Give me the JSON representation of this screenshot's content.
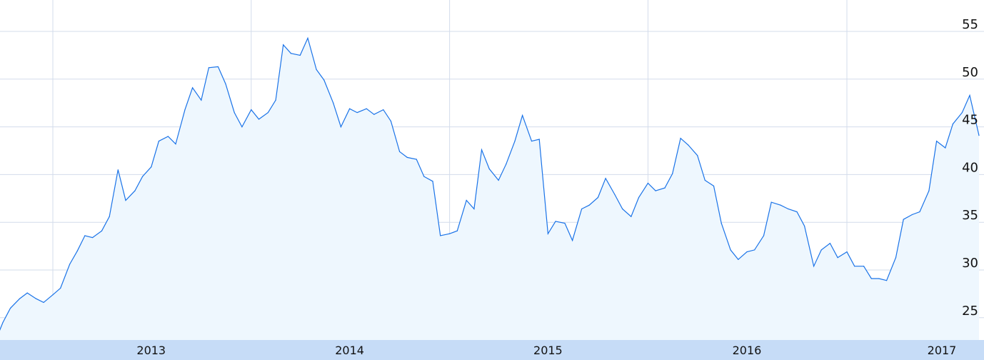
{
  "chart_data": {
    "type": "area",
    "title": "",
    "xlabel": "",
    "ylabel": "",
    "ylim": [
      22.7,
      58.3
    ],
    "y_ticks": [
      25,
      30,
      35,
      40,
      45,
      50,
      55
    ],
    "x_ticks": [
      "2013",
      "2014",
      "2015",
      "2016",
      "2017"
    ],
    "grid": true,
    "colors": {
      "line": "#1a73e8",
      "fill": "#eef7fe",
      "grid": "#d3dceb",
      "axis_band": "#c6dcf7"
    },
    "start": [
      "2012-09-24",
      23.5
    ],
    "semi_monthly_from": "2012-10-01",
    "values": [
      24.5,
      26.0,
      27.0,
      27.6,
      27.0,
      26.6,
      27.4,
      28.1,
      30.6,
      32.0,
      33.6,
      33.4,
      34.1,
      35.6,
      40.5,
      37.3,
      38.3,
      39.8,
      40.8,
      43.5,
      44.0,
      43.2,
      46.8,
      49.1,
      47.8,
      51.2,
      51.3,
      49.5,
      46.5,
      45.0,
      46.8,
      45.8,
      46.5,
      47.8,
      53.6,
      52.7,
      52.5,
      54.3,
      51.0,
      49.9,
      47.5,
      45.0,
      46.9,
      46.5,
      46.9,
      46.3,
      46.8,
      45.6,
      42.4,
      41.8,
      41.6,
      39.8,
      39.3,
      33.6,
      33.8,
      34.1,
      37.3,
      36.4,
      42.6,
      40.6,
      39.4,
      41.1,
      43.5,
      46.2,
      43.5,
      43.7,
      33.8,
      35.1,
      34.9,
      33.1,
      36.4,
      36.8,
      37.6,
      39.6,
      37.9,
      36.4,
      35.6,
      37.6,
      39.1,
      38.3,
      38.6,
      40.1,
      43.8,
      43.1,
      42.0,
      39.4,
      38.8,
      34.9,
      32.1,
      31.1,
      31.9,
      32.1,
      33.6,
      37.1,
      36.8,
      36.4,
      36.1,
      34.6,
      30.4,
      32.1,
      32.8,
      31.3,
      31.9,
      30.4,
      30.4,
      29.1,
      29.1,
      28.9,
      31.3,
      35.3,
      35.8,
      36.1,
      38.3,
      43.5,
      42.8,
      45.3,
      46.5,
      48.3,
      44.1
    ]
  }
}
